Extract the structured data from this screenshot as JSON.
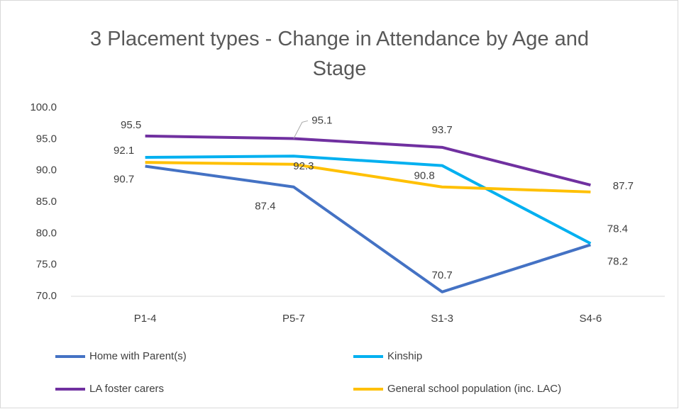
{
  "chart_data": {
    "type": "line",
    "title": "3 Placement types - Change in Attendance by Age and Stage",
    "categories": [
      "P1-4",
      "P5-7",
      "S1-3",
      "S4-6"
    ],
    "series": [
      {
        "name": "Home with Parent(s)",
        "color": "#4472c4",
        "values": [
          90.7,
          87.4,
          70.7,
          78.2
        ]
      },
      {
        "name": "Kinship",
        "color": "#00b0f0",
        "values": [
          92.1,
          92.3,
          90.8,
          78.4
        ]
      },
      {
        "name": "LA foster carers",
        "color": "#7030a0",
        "values": [
          95.5,
          95.1,
          93.7,
          87.7
        ]
      },
      {
        "name": "General school population (inc. LAC)",
        "color": "#ffc000",
        "values": [
          91.3,
          91.0,
          87.4,
          86.6
        ]
      }
    ],
    "ylim": [
      70,
      100
    ],
    "yticks": [
      {
        "value": 70,
        "label": "70.0"
      },
      {
        "value": 75,
        "label": "75.0"
      },
      {
        "value": 80,
        "label": "80.0"
      },
      {
        "value": 85,
        "label": "85.0"
      },
      {
        "value": 90,
        "label": "90.0"
      },
      {
        "value": 95,
        "label": "95.0"
      },
      {
        "value": 100,
        "label": "100.0"
      }
    ],
    "grid": false
  }
}
